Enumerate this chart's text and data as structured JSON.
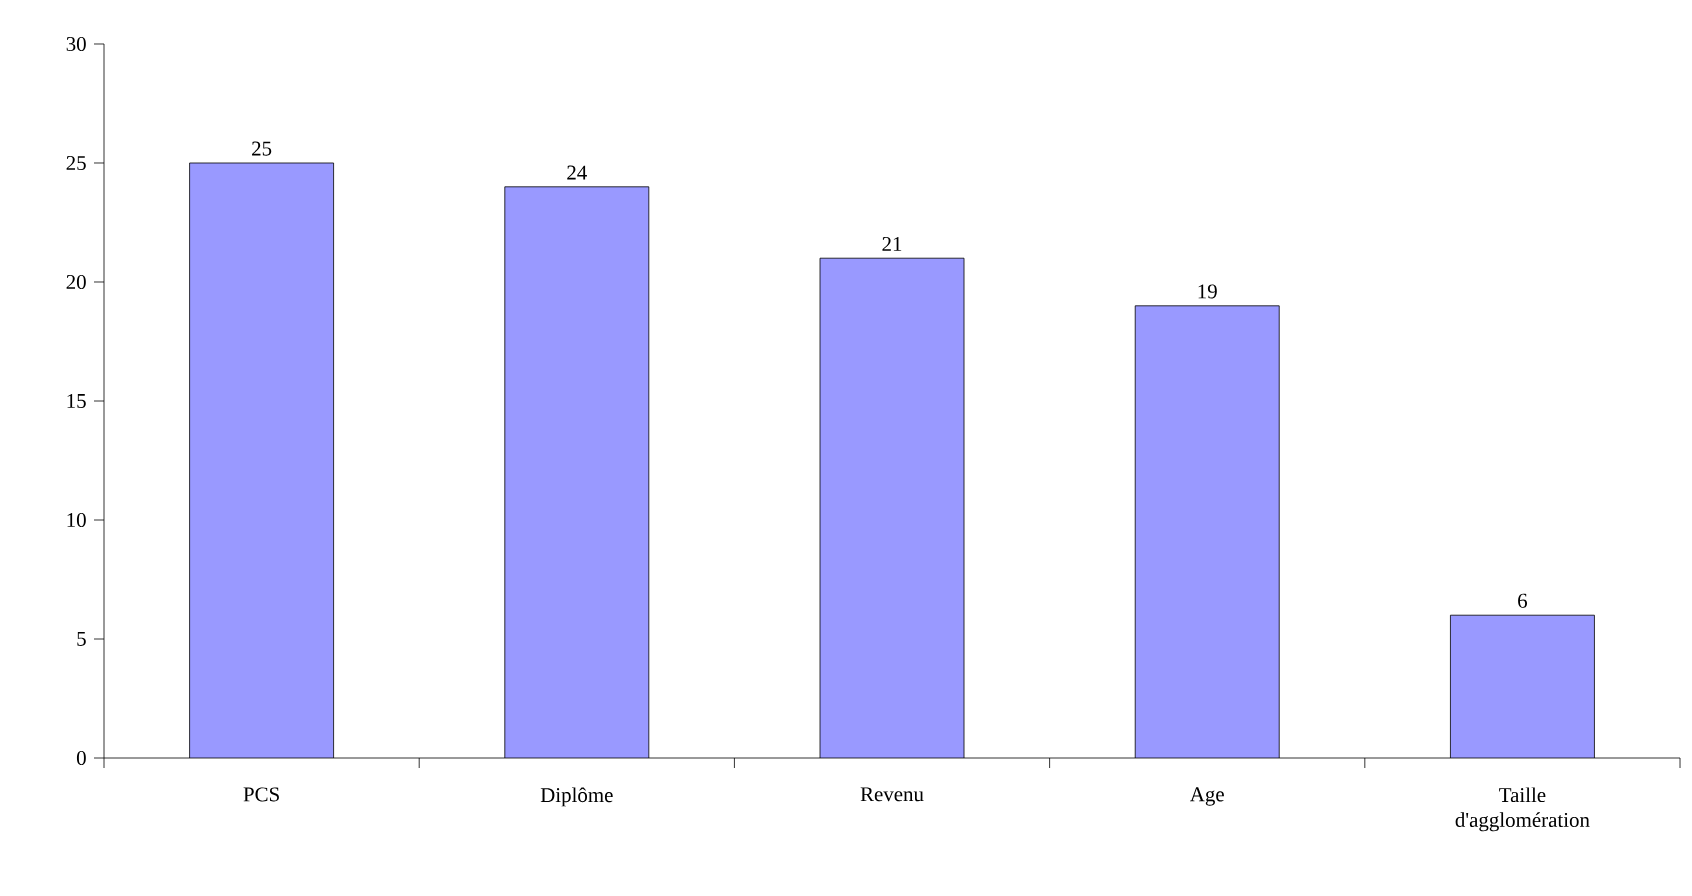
{
  "chart_data": {
    "type": "bar",
    "categories": [
      "PCS",
      "Diplôme",
      "Revenu",
      "Age",
      "Taille d'agglomération"
    ],
    "values": [
      25,
      24,
      21,
      19,
      6
    ],
    "color": "#9999ff",
    "ylim": [
      0,
      30
    ],
    "yticks": [
      0,
      5,
      10,
      15,
      20,
      25,
      30
    ],
    "data_labels": true
  }
}
